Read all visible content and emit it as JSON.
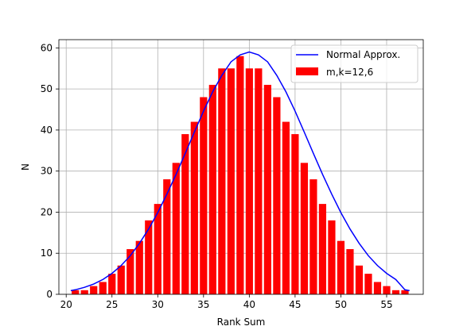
{
  "chart_data": {
    "type": "bar",
    "title": "",
    "xlabel": "Rank Sum",
    "ylabel": "N",
    "xlim": [
      19.2,
      59.0
    ],
    "ylim": [
      0,
      62
    ],
    "x_ticks": [
      20,
      25,
      30,
      35,
      40,
      45,
      50,
      55
    ],
    "y_ticks": [
      0,
      10,
      20,
      30,
      40,
      50,
      60
    ],
    "grid": true,
    "legend_position": "top-right",
    "colors": {
      "bars": "#ff0000",
      "line": "#0000ff"
    },
    "series": [
      {
        "name": "m,k=12,6",
        "type": "bar",
        "x": [
          21,
          22,
          23,
          24,
          25,
          26,
          27,
          28,
          29,
          30,
          31,
          32,
          33,
          34,
          35,
          36,
          37,
          38,
          39,
          40,
          41,
          42,
          43,
          44,
          45,
          46,
          47,
          48,
          49,
          50,
          51,
          52,
          53,
          54,
          55,
          56,
          57
        ],
        "values": [
          1,
          1,
          2,
          3,
          5,
          7,
          11,
          13,
          18,
          22,
          28,
          32,
          39,
          42,
          48,
          51,
          55,
          55,
          58,
          55,
          55,
          51,
          48,
          42,
          39,
          32,
          28,
          22,
          18,
          13,
          11,
          7,
          5,
          3,
          2,
          1,
          1
        ]
      },
      {
        "name": "Normal Approx.",
        "type": "line",
        "x": [
          20.5,
          21,
          22,
          23,
          24,
          25,
          26,
          27,
          28,
          29,
          30,
          31,
          32,
          33,
          34,
          35,
          36,
          37,
          38,
          39,
          40,
          41,
          42,
          43,
          44,
          45,
          46,
          47,
          48,
          49,
          50,
          51,
          52,
          53,
          54,
          55,
          56,
          57,
          57.5
        ],
        "values": [
          0.9,
          1.1,
          1.7,
          2.5,
          3.6,
          5.1,
          7.0,
          9.4,
          12.4,
          15.9,
          19.9,
          24.4,
          29.2,
          34.3,
          39.5,
          44.6,
          49.3,
          53.3,
          56.6,
          58.3,
          59.0,
          58.3,
          56.6,
          53.3,
          49.3,
          44.6,
          39.5,
          34.3,
          29.2,
          24.4,
          19.9,
          15.9,
          12.4,
          9.4,
          7.0,
          5.1,
          3.6,
          1.1,
          0.9
        ]
      }
    ]
  }
}
